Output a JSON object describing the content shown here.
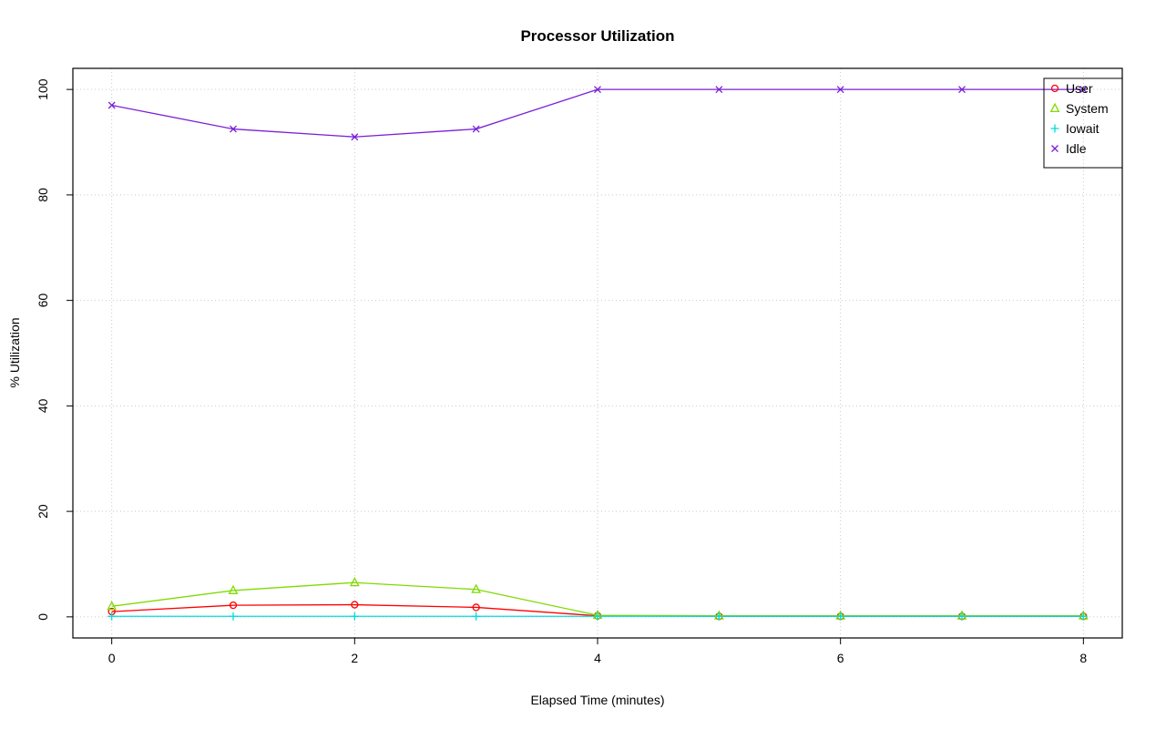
{
  "chart_data": {
    "type": "line",
    "title": "Processor Utilization",
    "xlabel": "Elapsed Time (minutes)",
    "ylabel": "% Utilization",
    "x": [
      0,
      1,
      2,
      3,
      4,
      5,
      6,
      7,
      8
    ],
    "xlim": [
      0,
      8
    ],
    "ylim": [
      0,
      100
    ],
    "x_ticks": [
      0,
      2,
      4,
      6,
      8
    ],
    "y_ticks": [
      0,
      20,
      40,
      60,
      80,
      100
    ],
    "x_tick_labels": [
      "0",
      "2",
      "4",
      "6",
      "8"
    ],
    "y_tick_labels": [
      "0",
      "20",
      "40",
      "60",
      "80",
      "100"
    ],
    "grid": "dotted",
    "grid_color": "#c9c9c9",
    "legend_position": "top-right",
    "series": [
      {
        "name": "User",
        "color": "#ff0000",
        "marker": "circle",
        "values": [
          1.0,
          2.2,
          2.3,
          1.8,
          0.2,
          0.1,
          0.1,
          0.1,
          0.1
        ]
      },
      {
        "name": "System",
        "color": "#7fdb00",
        "marker": "triangle",
        "values": [
          2.0,
          5.0,
          6.5,
          5.2,
          0.3,
          0.2,
          0.2,
          0.2,
          0.2
        ]
      },
      {
        "name": "Iowait",
        "color": "#00dcdc",
        "marker": "plus",
        "values": [
          0.1,
          0.1,
          0.1,
          0.1,
          0.1,
          0.1,
          0.1,
          0.1,
          0.1
        ]
      },
      {
        "name": "Idle",
        "color": "#7a1fd6",
        "marker": "x",
        "values": [
          97.0,
          92.5,
          91.0,
          92.5,
          100.0,
          100.0,
          100.0,
          100.0,
          100.0
        ]
      }
    ]
  }
}
